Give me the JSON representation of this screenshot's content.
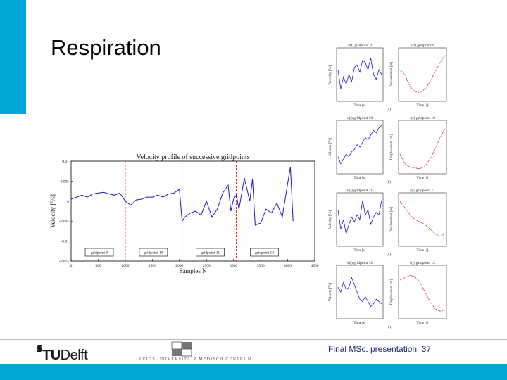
{
  "slide": {
    "title": "Respiration",
    "footer_text": "Final MSc. presentation",
    "page_number": "37",
    "logo_text": "Delft",
    "logo_text_bold": "TU",
    "partner_logo_text": "LUMC",
    "partner_caption": "LEIDS UNIVERSITAIR MEDISCH CENTRUM",
    "accent_color": "#00a6d6"
  },
  "chart_data": [
    {
      "type": "line",
      "title": "Velocity profile of successive gridpoints",
      "xlabel": "Samples N",
      "ylabel": "Velocity [°/s]",
      "xlim": [
        0,
        4500
      ],
      "ylim": [
        -0.015,
        0.01
      ],
      "xticks": [
        "0",
        "500",
        "1000",
        "1500",
        "2000",
        "2500",
        "3000",
        "3500",
        "4000",
        "4500"
      ],
      "yticks": [
        "0.01",
        "0.005",
        "0",
        "-0.005",
        "-0.01",
        "-0.015"
      ],
      "separators": [
        1000,
        2050,
        3050
      ],
      "segment_labels": [
        "gridpoint 9",
        "gridpoint 10",
        "gridpoint 11",
        "gridpoint 12"
      ],
      "series": [
        {
          "color": "#1a1acc",
          "x": [
            0,
            100,
            200,
            300,
            400,
            500,
            600,
            700,
            800,
            900,
            1000,
            1100,
            1200,
            1300,
            1400,
            1500,
            1600,
            1700,
            1800,
            1900,
            2000,
            2050,
            2100,
            2200,
            2300,
            2400,
            2500,
            2600,
            2700,
            2800,
            2900,
            2950,
            3000,
            3050,
            3100,
            3200,
            3300,
            3350,
            3400,
            3500,
            3600,
            3700,
            3800,
            3900,
            4000,
            4050,
            4100
          ],
          "y": [
            0.0005,
            0.001,
            0.0015,
            0.001,
            0.0018,
            0.002,
            0.0022,
            0.0018,
            0.0015,
            0.002,
            0.0,
            -0.001,
            0.0003,
            0.0005,
            0.001,
            0.001,
            0.0015,
            0.001,
            0.0018,
            0.002,
            0.003,
            -0.005,
            -0.004,
            -0.003,
            -0.0025,
            -0.0035,
            0.0,
            -0.004,
            -0.002,
            0.002,
            0.004,
            -0.0025,
            0.0005,
            0.0015,
            -0.002,
            0.0058,
            0.0,
            0.0055,
            -0.006,
            -0.0055,
            -0.002,
            -0.003,
            -0.0005,
            -0.004,
            0.0045,
            0.0085,
            -0.005
          ]
        }
      ]
    },
    {
      "type": "line",
      "panel": "(a)",
      "left_title": "v(t) gridpoint 9",
      "right_title": "s(t) gridpoint 9",
      "left_ylabel": "Velocity [°/s]",
      "right_ylabel": "Displacement [m]",
      "xlabel": "Time [s]",
      "velocity": [
        0.6,
        0.2,
        0.45,
        0.3,
        0.5,
        0.35,
        0.65,
        0.7,
        0.55,
        0.8,
        0.75,
        0.6,
        0.85,
        0.5,
        0.4,
        0.6,
        0.5
      ],
      "displacement": [
        0.6,
        0.5,
        0.25,
        0.15,
        0.12,
        0.2,
        0.35,
        0.55,
        0.75,
        0.9
      ]
    },
    {
      "type": "line",
      "panel": "(b)",
      "left_title": "v(t) gridpoint 10",
      "right_title": "s(t) gridpoint 10",
      "left_ylabel": "Velocity [°/s]",
      "right_ylabel": "Displacement [m]",
      "xlabel": "Time [s]",
      "velocity": [
        0.3,
        0.15,
        0.25,
        0.35,
        0.3,
        0.4,
        0.45,
        0.55,
        0.5,
        0.6,
        0.7,
        0.65,
        0.75,
        0.85,
        0.8,
        0.9,
        0.95
      ],
      "displacement": [
        0.35,
        0.15,
        0.08,
        0.06,
        0.05,
        0.1,
        0.25,
        0.45,
        0.7,
        0.88
      ]
    },
    {
      "type": "line",
      "panel": "(c)",
      "left_title": "v(t) gridpoint 11",
      "right_title": "s(t) gridpoint 11",
      "left_ylabel": "Velocity [°/s]",
      "right_ylabel": "Displacement [m]",
      "xlabel": "Time [s]",
      "velocity": [
        0.7,
        0.3,
        0.5,
        0.2,
        0.4,
        0.55,
        0.45,
        0.6,
        0.5,
        0.9,
        0.6,
        0.7,
        0.4,
        0.55,
        0.65,
        0.6,
        0.9
      ],
      "displacement": [
        0.88,
        0.75,
        0.6,
        0.5,
        0.45,
        0.4,
        0.3,
        0.2,
        0.15,
        0.2
      ]
    },
    {
      "type": "line",
      "panel": "(d)",
      "left_title": "v(t) gridpoint 12",
      "right_title": "s(t) gridpoint 12",
      "left_ylabel": "Velocity [°/s]",
      "right_ylabel": "Displacement [m]",
      "xlabel": "Time [s]",
      "velocity": [
        0.6,
        0.5,
        0.7,
        0.55,
        0.6,
        0.8,
        0.65,
        0.5,
        0.35,
        0.3,
        0.4,
        0.3,
        0.2,
        0.25,
        0.35,
        0.3,
        0.25
      ],
      "displacement": [
        0.75,
        0.8,
        0.85,
        0.82,
        0.7,
        0.5,
        0.3,
        0.15,
        0.1,
        0.12
      ]
    }
  ]
}
